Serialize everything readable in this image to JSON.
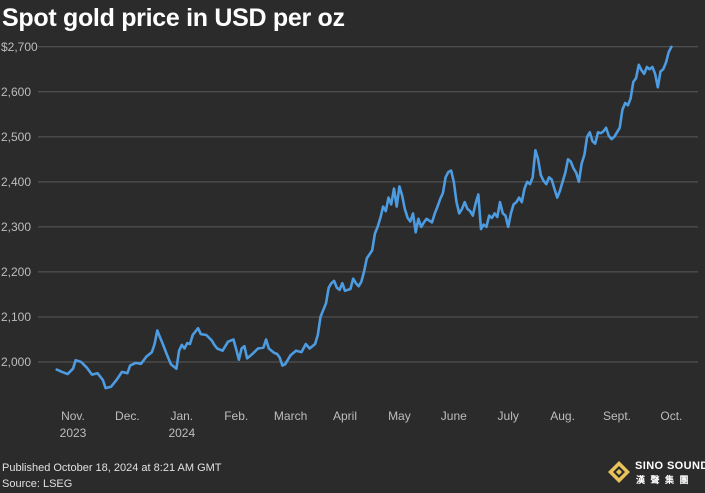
{
  "chart_data": {
    "type": "line",
    "title": "Spot gold price in USD per oz",
    "xlabel": "",
    "ylabel": "",
    "ylim": [
      1920,
      2715
    ],
    "y_ticks": [
      2000,
      2100,
      2200,
      2300,
      2400,
      2500,
      2600,
      2700
    ],
    "y_tick_labels": [
      "2,000",
      "2,100",
      "2,200",
      "2,300",
      "2,400",
      "2,500",
      "2,600",
      "$2,700"
    ],
    "grid": true,
    "x_labels": [
      {
        "month": 0,
        "line1": "Nov.",
        "line2": "2023"
      },
      {
        "month": 1,
        "line1": "Dec.",
        "line2": ""
      },
      {
        "month": 2,
        "line1": "Jan.",
        "line2": "2024"
      },
      {
        "month": 3,
        "line1": "Feb.",
        "line2": ""
      },
      {
        "month": 4,
        "line1": "March",
        "line2": ""
      },
      {
        "month": 5,
        "line1": "April",
        "line2": ""
      },
      {
        "month": 6,
        "line1": "May",
        "line2": ""
      },
      {
        "month": 7,
        "line1": "June",
        "line2": ""
      },
      {
        "month": 8,
        "line1": "July",
        "line2": ""
      },
      {
        "month": 9,
        "line1": "Aug.",
        "line2": ""
      },
      {
        "month": 10,
        "line1": "Sept.",
        "line2": ""
      },
      {
        "month": 11,
        "line1": "Oct.",
        "line2": ""
      }
    ],
    "series": [
      {
        "name": "Spot gold price",
        "color": "#4d9be0",
        "x_unit": "months since Nov. 1, 2023 (label centered mid-month)",
        "points": [
          [
            -0.3,
            1983
          ],
          [
            -0.2,
            1978
          ],
          [
            -0.1,
            1973
          ],
          [
            0.0,
            1985
          ],
          [
            0.05,
            2004
          ],
          [
            0.15,
            2000
          ],
          [
            0.25,
            1988
          ],
          [
            0.35,
            1972
          ],
          [
            0.45,
            1975
          ],
          [
            0.55,
            1960
          ],
          [
            0.6,
            1942
          ],
          [
            0.7,
            1945
          ],
          [
            0.8,
            1960
          ],
          [
            0.9,
            1978
          ],
          [
            1.0,
            1975
          ],
          [
            1.05,
            1992
          ],
          [
            1.15,
            1998
          ],
          [
            1.25,
            1996
          ],
          [
            1.35,
            2012
          ],
          [
            1.45,
            2022
          ],
          [
            1.5,
            2040
          ],
          [
            1.55,
            2070
          ],
          [
            1.6,
            2055
          ],
          [
            1.65,
            2040
          ],
          [
            1.72,
            2018
          ],
          [
            1.8,
            1995
          ],
          [
            1.9,
            1985
          ],
          [
            1.95,
            2025
          ],
          [
            2.0,
            2038
          ],
          [
            2.05,
            2030
          ],
          [
            2.1,
            2042
          ],
          [
            2.15,
            2040
          ],
          [
            2.2,
            2060
          ],
          [
            2.3,
            2075
          ],
          [
            2.35,
            2062
          ],
          [
            2.45,
            2060
          ],
          [
            2.55,
            2048
          ],
          [
            2.6,
            2038
          ],
          [
            2.65,
            2030
          ],
          [
            2.75,
            2025
          ],
          [
            2.85,
            2045
          ],
          [
            2.95,
            2050
          ],
          [
            3.0,
            2028
          ],
          [
            3.05,
            2005
          ],
          [
            3.1,
            2030
          ],
          [
            3.15,
            2035
          ],
          [
            3.2,
            2008
          ],
          [
            3.3,
            2018
          ],
          [
            3.4,
            2030
          ],
          [
            3.5,
            2032
          ],
          [
            3.55,
            2050
          ],
          [
            3.6,
            2030
          ],
          [
            3.7,
            2020
          ],
          [
            3.75,
            2018
          ],
          [
            3.8,
            2010
          ],
          [
            3.85,
            1992
          ],
          [
            3.9,
            1995
          ],
          [
            4.0,
            2015
          ],
          [
            4.1,
            2025
          ],
          [
            4.2,
            2022
          ],
          [
            4.28,
            2040
          ],
          [
            4.35,
            2030
          ],
          [
            4.45,
            2040
          ],
          [
            4.5,
            2060
          ],
          [
            4.55,
            2100
          ],
          [
            4.6,
            2115
          ],
          [
            4.65,
            2130
          ],
          [
            4.7,
            2165
          ],
          [
            4.75,
            2175
          ],
          [
            4.8,
            2180
          ],
          [
            4.85,
            2165
          ],
          [
            4.9,
            2160
          ],
          [
            4.95,
            2175
          ],
          [
            5.0,
            2158
          ],
          [
            5.1,
            2162
          ],
          [
            5.15,
            2185
          ],
          [
            5.2,
            2175
          ],
          [
            5.25,
            2168
          ],
          [
            5.3,
            2178
          ],
          [
            5.35,
            2200
          ],
          [
            5.4,
            2230
          ],
          [
            5.5,
            2248
          ],
          [
            5.55,
            2285
          ],
          [
            5.6,
            2300
          ],
          [
            5.65,
            2320
          ],
          [
            5.7,
            2345
          ],
          [
            5.75,
            2335
          ],
          [
            5.8,
            2365
          ],
          [
            5.85,
            2350
          ],
          [
            5.9,
            2385
          ],
          [
            5.95,
            2345
          ],
          [
            6.0,
            2390
          ],
          [
            6.05,
            2370
          ],
          [
            6.1,
            2340
          ],
          [
            6.15,
            2320
          ],
          [
            6.2,
            2312
          ],
          [
            6.25,
            2330
          ],
          [
            6.3,
            2288
          ],
          [
            6.35,
            2318
          ],
          [
            6.4,
            2300
          ],
          [
            6.45,
            2310
          ],
          [
            6.5,
            2318
          ],
          [
            6.6,
            2310
          ],
          [
            6.65,
            2330
          ],
          [
            6.7,
            2345
          ],
          [
            6.75,
            2362
          ],
          [
            6.8,
            2375
          ],
          [
            6.85,
            2410
          ],
          [
            6.9,
            2422
          ],
          [
            6.95,
            2425
          ],
          [
            7.0,
            2400
          ],
          [
            7.05,
            2355
          ],
          [
            7.1,
            2330
          ],
          [
            7.15,
            2340
          ],
          [
            7.2,
            2355
          ],
          [
            7.25,
            2340
          ],
          [
            7.3,
            2335
          ],
          [
            7.35,
            2325
          ],
          [
            7.4,
            2352
          ],
          [
            7.45,
            2372
          ],
          [
            7.5,
            2295
          ],
          [
            7.55,
            2305
          ],
          [
            7.6,
            2300
          ],
          [
            7.65,
            2325
          ],
          [
            7.7,
            2320
          ],
          [
            7.75,
            2330
          ],
          [
            7.8,
            2322
          ],
          [
            7.85,
            2355
          ],
          [
            7.9,
            2330
          ],
          [
            7.95,
            2325
          ],
          [
            8.0,
            2300
          ],
          [
            8.05,
            2330
          ],
          [
            8.1,
            2350
          ],
          [
            8.15,
            2355
          ],
          [
            8.2,
            2365
          ],
          [
            8.25,
            2355
          ],
          [
            8.3,
            2385
          ],
          [
            8.35,
            2400
          ],
          [
            8.4,
            2395
          ],
          [
            8.45,
            2410
          ],
          [
            8.5,
            2470
          ],
          [
            8.55,
            2450
          ],
          [
            8.6,
            2415
          ],
          [
            8.65,
            2402
          ],
          [
            8.7,
            2395
          ],
          [
            8.75,
            2410
          ],
          [
            8.8,
            2405
          ],
          [
            8.85,
            2385
          ],
          [
            8.9,
            2365
          ],
          [
            8.95,
            2380
          ],
          [
            9.0,
            2400
          ],
          [
            9.05,
            2420
          ],
          [
            9.1,
            2450
          ],
          [
            9.15,
            2445
          ],
          [
            9.2,
            2430
          ],
          [
            9.25,
            2420
          ],
          [
            9.3,
            2400
          ],
          [
            9.35,
            2440
          ],
          [
            9.4,
            2460
          ],
          [
            9.45,
            2500
          ],
          [
            9.5,
            2510
          ],
          [
            9.55,
            2490
          ],
          [
            9.6,
            2485
          ],
          [
            9.65,
            2510
          ],
          [
            9.7,
            2508
          ],
          [
            9.75,
            2512
          ],
          [
            9.8,
            2520
          ],
          [
            9.85,
            2502
          ],
          [
            9.9,
            2495
          ],
          [
            9.95,
            2500
          ],
          [
            10.0,
            2510
          ],
          [
            10.05,
            2520
          ],
          [
            10.1,
            2560
          ],
          [
            10.15,
            2575
          ],
          [
            10.2,
            2570
          ],
          [
            10.25,
            2585
          ],
          [
            10.3,
            2622
          ],
          [
            10.35,
            2630
          ],
          [
            10.4,
            2660
          ],
          [
            10.45,
            2648
          ],
          [
            10.5,
            2640
          ],
          [
            10.55,
            2655
          ],
          [
            10.6,
            2650
          ],
          [
            10.65,
            2655
          ],
          [
            10.7,
            2640
          ],
          [
            10.75,
            2610
          ],
          [
            10.8,
            2645
          ],
          [
            10.85,
            2650
          ],
          [
            10.9,
            2665
          ],
          [
            10.95,
            2688
          ],
          [
            11.0,
            2700
          ]
        ]
      }
    ]
  },
  "footer": {
    "published": "Published October 18, 2024 at 8:21 AM GMT",
    "source": "Source: LSEG"
  },
  "logo": {
    "name": "SINO SOUND",
    "subtitle": "漢 聲 集 團"
  }
}
